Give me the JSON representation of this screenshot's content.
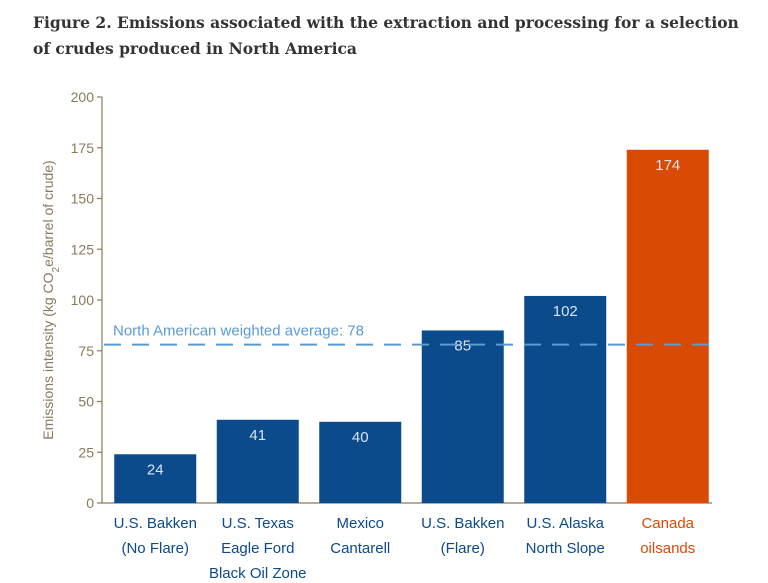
{
  "figure": {
    "title_line1": "Figure 2. Emissions associated with the extraction and processing for a selection",
    "title_line2": "of crudes produced in North America"
  },
  "chart_data": {
    "type": "bar",
    "title": "Figure 2. Emissions associated with the extraction and processing for a selection of crudes produced in North America",
    "ylabel": "Emissions intensity (kg CO2e/barrel of crude)",
    "ylabel_parts": {
      "before": "Emissions intensity (kg CO",
      "sub": "2",
      "after": "e/barrel of crude)"
    },
    "xlabel": "",
    "ylim": [
      0,
      200
    ],
    "yticks": [
      0,
      25,
      50,
      75,
      100,
      125,
      150,
      175,
      200
    ],
    "categories": [
      [
        "U.S. Bakken",
        "(No Flare)"
      ],
      [
        "U.S. Texas",
        "Eagle Ford",
        "Black Oil Zone"
      ],
      [
        "Mexico",
        "Cantarell"
      ],
      [
        "U.S. Bakken",
        "(Flare)"
      ],
      [
        "U.S. Alaska",
        "North Slope"
      ],
      [
        "Canada",
        "oilsands"
      ]
    ],
    "values": [
      24,
      41,
      40,
      85,
      102,
      174
    ],
    "bar_colors": [
      "#0b4a8b",
      "#0b4a8b",
      "#0b4a8b",
      "#0b4a8b",
      "#0b4a8b",
      "#d94a05"
    ],
    "label_colors": [
      "#0b4a8b",
      "#0b4a8b",
      "#0b4a8b",
      "#0b4a8b",
      "#0b4a8b",
      "#d94a05"
    ],
    "reference_line": {
      "label": "North American weighted average: 78",
      "value": 78,
      "color": "#5b9bd5",
      "style": "dashed"
    },
    "grid": false,
    "axis_color": "#8a7a5c"
  }
}
